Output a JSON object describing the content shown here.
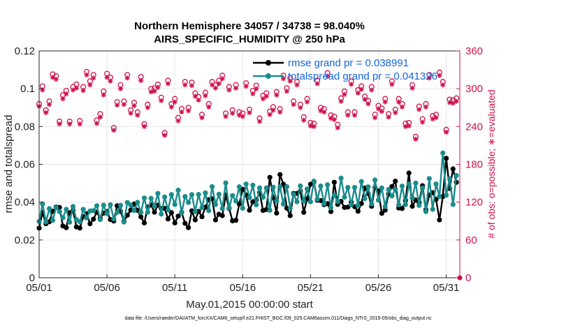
{
  "chart_data": {
    "type": "line",
    "title": "Northern Hemisphere 34057 / 34738 = 98.040%",
    "subtitle": "AIRS_SPECIFIC_HUMIDITY @ 250 hPa",
    "xlabel": "May.01,2015 00:00:00 start",
    "ylabel": "rmse and totalspread",
    "ylabel_right": "# of obs: o=possible; ∗=evaluated",
    "xlim": [
      0,
      31
    ],
    "ylim": [
      0,
      0.12
    ],
    "ylim_right": [
      0,
      360
    ],
    "x_ticks": [
      0,
      5,
      10,
      15,
      20,
      25,
      30
    ],
    "x_tick_labels": [
      "05/01",
      "05/06",
      "05/11",
      "05/16",
      "05/21",
      "05/26",
      "05/31"
    ],
    "y_ticks": [
      0,
      0.02,
      0.04,
      0.06,
      0.08,
      0.1,
      0.12
    ],
    "y_tick_labels": [
      "0",
      "0.02",
      "0.04",
      "0.06",
      "0.08",
      "0.1",
      "0.12"
    ],
    "y_right_ticks": [
      0,
      60,
      120,
      180,
      240,
      300,
      360
    ],
    "y_right_tick_labels": [
      "0",
      "60",
      "120",
      "180",
      "240",
      "300",
      "360"
    ],
    "grid": true,
    "legend_position": "top-right",
    "x": [
      0.0,
      0.25,
      0.5,
      0.75,
      1.0,
      1.25,
      1.5,
      1.75,
      2.0,
      2.25,
      2.5,
      2.75,
      3.0,
      3.25,
      3.5,
      3.75,
      4.0,
      4.25,
      4.5,
      4.75,
      5.0,
      5.25,
      5.5,
      5.75,
      6.0,
      6.25,
      6.5,
      6.75,
      7.0,
      7.25,
      7.5,
      7.75,
      8.0,
      8.25,
      8.5,
      8.75,
      9.0,
      9.25,
      9.5,
      9.75,
      10.0,
      10.25,
      10.5,
      10.75,
      11.0,
      11.25,
      11.5,
      11.75,
      12.0,
      12.25,
      12.5,
      12.75,
      13.0,
      13.25,
      13.5,
      13.75,
      14.0,
      14.25,
      14.5,
      14.75,
      15.0,
      15.25,
      15.5,
      15.75,
      16.0,
      16.25,
      16.5,
      16.75,
      17.0,
      17.25,
      17.5,
      17.75,
      18.0,
      18.25,
      18.5,
      18.75,
      19.0,
      19.25,
      19.5,
      19.75,
      20.0,
      20.25,
      20.5,
      20.75,
      21.0,
      21.25,
      21.5,
      21.75,
      22.0,
      22.25,
      22.5,
      22.75,
      23.0,
      23.25,
      23.5,
      23.75,
      24.0,
      24.25,
      24.5,
      24.75,
      25.0,
      25.25,
      25.5,
      25.75,
      26.0,
      26.25,
      26.5,
      26.75,
      27.0,
      27.25,
      27.5,
      27.75,
      28.0,
      28.25,
      28.5,
      28.75,
      29.0,
      29.25,
      29.5,
      29.75,
      30.0,
      30.25,
      30.5,
      30.75
    ],
    "series": [
      {
        "name": "rmse grand pr = 0.038991",
        "axis": "left",
        "color": "#000000",
        "values": [
          0.0263,
          0.0346,
          0.0286,
          0.0296,
          0.0352,
          0.0374,
          0.0372,
          0.0274,
          0.0265,
          0.0344,
          0.0356,
          0.0269,
          0.0263,
          0.0323,
          0.0339,
          0.0286,
          0.031,
          0.0347,
          0.0314,
          0.0342,
          0.035,
          0.0308,
          0.03,
          0.0381,
          0.0352,
          0.0298,
          0.0331,
          0.0358,
          0.039,
          0.0357,
          0.0322,
          0.029,
          0.0374,
          0.0385,
          0.0347,
          0.0384,
          0.0366,
          0.0367,
          0.0311,
          0.0345,
          0.029,
          0.0326,
          0.0346,
          0.0288,
          0.0265,
          0.0354,
          0.0306,
          0.0351,
          0.0323,
          0.0373,
          0.0413,
          0.0418,
          0.0306,
          0.0336,
          0.0329,
          0.0438,
          0.0367,
          0.0301,
          0.0304,
          0.039,
          0.0468,
          0.0438,
          0.0357,
          0.0402,
          0.0412,
          0.0451,
          0.0356,
          0.0361,
          0.0531,
          0.0424,
          0.0342,
          0.0546,
          0.0495,
          0.0368,
          0.0329,
          0.0446,
          0.0446,
          0.046,
          0.0346,
          0.0417,
          0.0495,
          0.0507,
          0.041,
          0.0408,
          0.0387,
          0.0392,
          0.035,
          0.0505,
          0.0388,
          0.0404,
          0.0372,
          0.0374,
          0.04,
          0.0376,
          0.0352,
          0.0393,
          0.0475,
          0.0445,
          0.0378,
          0.0478,
          0.046,
          0.0341,
          0.0358,
          0.0443,
          0.0483,
          0.0511,
          0.0369,
          0.0366,
          0.0409,
          0.0554,
          0.0378,
          0.0411,
          0.0399,
          0.0487,
          0.036,
          0.0438,
          0.045,
          0.0415,
          0.0306,
          0.043,
          0.0632,
          0.0472,
          0.0576,
          0.0505
        ]
      },
      {
        "name": "totalspread grand pr = 0.041326",
        "axis": "left",
        "color": "#1b8c8c",
        "values": [
          0.0298,
          0.0391,
          0.0295,
          0.0366,
          0.0304,
          0.0371,
          0.035,
          0.0317,
          0.0362,
          0.0294,
          0.0377,
          0.0307,
          0.0296,
          0.0362,
          0.0317,
          0.0353,
          0.0355,
          0.0381,
          0.0308,
          0.0384,
          0.0339,
          0.0386,
          0.0311,
          0.0346,
          0.0383,
          0.0295,
          0.0398,
          0.0384,
          0.0356,
          0.0399,
          0.0346,
          0.0422,
          0.0347,
          0.042,
          0.0379,
          0.0446,
          0.0337,
          0.0427,
          0.0359,
          0.044,
          0.0388,
          0.0463,
          0.0343,
          0.043,
          0.0398,
          0.044,
          0.035,
          0.0441,
          0.0371,
          0.0449,
          0.0355,
          0.0482,
          0.0388,
          0.0442,
          0.0366,
          0.0502,
          0.037,
          0.0435,
          0.0406,
          0.0481,
          0.0368,
          0.0496,
          0.0424,
          0.049,
          0.0386,
          0.0475,
          0.0426,
          0.0475,
          0.0357,
          0.0479,
          0.0406,
          0.0482,
          0.039,
          0.0482,
          0.0368,
          0.0442,
          0.0402,
          0.0486,
          0.0405,
          0.047,
          0.0402,
          0.0511,
          0.0415,
          0.0485,
          0.0392,
          0.0492,
          0.037,
          0.0437,
          0.0403,
          0.0527,
          0.0426,
          0.0478,
          0.0386,
          0.0478,
          0.0383,
          0.0509,
          0.0419,
          0.0481,
          0.039,
          0.0517,
          0.0411,
          0.0475,
          0.0377,
          0.0467,
          0.0433,
          0.0468,
          0.0386,
          0.0485,
          0.0387,
          0.0496,
          0.0422,
          0.0501,
          0.0383,
          0.0475,
          0.035,
          0.0525,
          0.0362,
          0.0496,
          0.043,
          0.066,
          0.0437,
          0.0524,
          0.0388,
          0.0541
        ]
      },
      {
        "name": "possible",
        "axis": "right",
        "color": "#d0104c",
        "marker": "o",
        "values": [
          276,
          304,
          266,
          280,
          323,
          320,
          248,
          290,
          297,
          248,
          303,
          307,
          249,
          303,
          327,
          312,
          322,
          250,
          260,
          296,
          324,
          318,
          238,
          279,
          306,
          280,
          322,
          266,
          278,
          263,
          319,
          244,
          275,
          300,
          301,
          307,
          286,
          230,
          313,
          276,
          284,
          254,
          268,
          311,
          270,
          310,
          293,
          287,
          259,
          294,
          276,
          311,
          306,
          313,
          321,
          261,
          303,
          266,
          306,
          263,
          261,
          309,
          267,
          297,
          305,
          253,
          289,
          293,
          264,
          271,
          295,
          268,
          321,
          301,
          317,
          280,
          311,
          275,
          255,
          284,
          246,
          245,
          313,
          270,
          268,
          325,
          258,
          256,
          243,
          285,
          296,
          263,
          312,
          263,
          298,
          304,
          288,
          281,
          303,
          259,
          273,
          269,
          284,
          260,
          312,
          267,
          284,
          276,
          245,
          246,
          306,
          224,
          272,
          252,
          276,
          322,
          257,
          259,
          326,
          311,
          235,
          283,
          282,
          285
        ]
      },
      {
        "name": "evaluated",
        "axis": "right",
        "color": "#d0104c",
        "marker": "*",
        "values": [
          272,
          298,
          262,
          275,
          318,
          315,
          244,
          284,
          292,
          244,
          298,
          301,
          244,
          297,
          322,
          306,
          317,
          245,
          255,
          290,
          318,
          312,
          234,
          274,
          300,
          275,
          317,
          261,
          273,
          258,
          313,
          240,
          270,
          295,
          296,
          302,
          281,
          226,
          308,
          271,
          279,
          249,
          263,
          306,
          265,
          305,
          288,
          282,
          254,
          289,
          271,
          306,
          301,
          308,
          316,
          256,
          298,
          261,
          301,
          258,
          256,
          304,
          262,
          292,
          300,
          248,
          284,
          288,
          259,
          266,
          290,
          263,
          316,
          296,
          312,
          275,
          306,
          270,
          250,
          279,
          241,
          240,
          308,
          265,
          263,
          320,
          253,
          251,
          238,
          280,
          291,
          258,
          307,
          258,
          293,
          299,
          283,
          276,
          298,
          254,
          268,
          264,
          279,
          255,
          307,
          262,
          279,
          271,
          240,
          241,
          301,
          220,
          267,
          247,
          271,
          317,
          252,
          254,
          321,
          306,
          231,
          278,
          277,
          280
        ]
      }
    ]
  },
  "footer_text": "data file: /Users/raeder/DAI/ATM_forcXX/CAM6_setup/f.e21.FHIST_BGC.f09_025.CAM6assim.011/Diags_NTrS_2015-05/obs_diag_output.nc"
}
